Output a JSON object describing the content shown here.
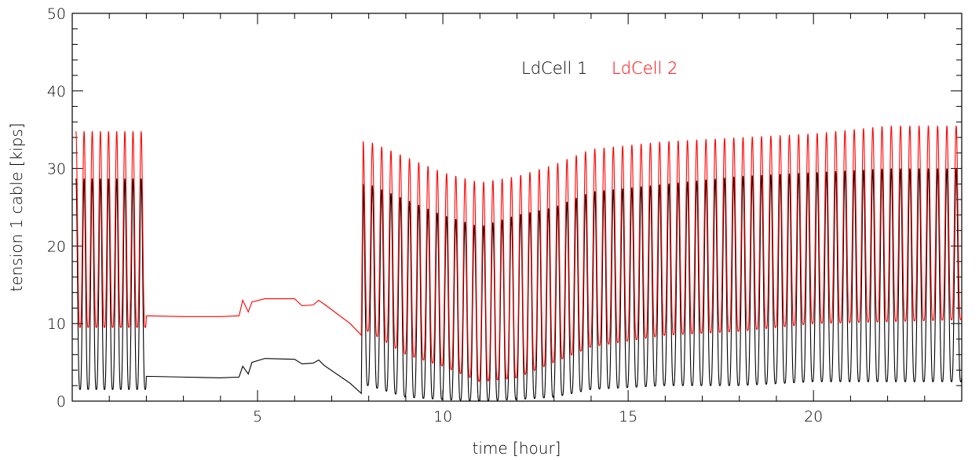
{
  "chart_data": {
    "type": "line",
    "title": "",
    "xlabel": "time [hour]",
    "ylabel": "tension 1 cable [kips]",
    "xlim": [
      0,
      24
    ],
    "ylim": [
      0,
      50
    ],
    "x_ticks": [
      5,
      10,
      15,
      20
    ],
    "y_ticks": [
      0,
      10,
      20,
      30,
      40,
      50
    ],
    "legend": {
      "placement": "top-center",
      "entries": [
        "LdCell 1",
        "LdCell 2"
      ]
    },
    "grid": false,
    "colors": {
      "LdCell 1": "#000000",
      "LdCell 2": "#ff0000"
    },
    "series": [
      {
        "name": "LdCell 1",
        "segments": [
          {
            "kind": "oscillation",
            "x_start": 0.1,
            "x_end": 2.0,
            "period": 0.22,
            "min": 1.5,
            "max": 28.7
          },
          {
            "kind": "plateau",
            "points": [
              [
                2.0,
                3.2
              ],
              [
                3.0,
                3.1
              ],
              [
                4.0,
                3.0
              ],
              [
                4.5,
                3.1
              ],
              [
                4.6,
                4.5
              ],
              [
                4.75,
                3.5
              ],
              [
                4.85,
                5.0
              ],
              [
                5.2,
                5.5
              ],
              [
                6.0,
                5.4
              ],
              [
                6.2,
                4.8
              ],
              [
                6.5,
                4.9
              ],
              [
                6.65,
                5.3
              ],
              [
                6.8,
                4.6
              ],
              [
                7.5,
                2.3
              ],
              [
                7.8,
                1.0
              ]
            ]
          },
          {
            "kind": "oscillation",
            "x_start": 7.85,
            "x_end": 24.0,
            "period": 0.25,
            "amplitude_profile": [
              [
                8.0,
                28.0
              ],
              [
                9.0,
                26.0
              ],
              [
                10.0,
                24.0
              ],
              [
                11.0,
                22.5
              ],
              [
                12.0,
                24.0
              ],
              [
                13.0,
                25.0
              ],
              [
                14.0,
                27.0
              ],
              [
                16.0,
                28.0
              ],
              [
                18.0,
                29.0
              ],
              [
                20.0,
                29.5
              ],
              [
                22.0,
                30.0
              ],
              [
                24.0,
                30.0
              ]
            ],
            "min_profile": [
              [
                8.0,
                2.0
              ],
              [
                9.0,
                0.5
              ],
              [
                10.0,
                0.2
              ],
              [
                11.0,
                0.0
              ],
              [
                12.0,
                0.2
              ],
              [
                13.0,
                0.5
              ],
              [
                14.0,
                1.5
              ],
              [
                16.0,
                2.0
              ],
              [
                18.0,
                2.0
              ],
              [
                20.0,
                2.5
              ],
              [
                24.0,
                2.5
              ]
            ]
          }
        ]
      },
      {
        "name": "LdCell 2",
        "segments": [
          {
            "kind": "oscillation",
            "x_start": 0.1,
            "x_end": 2.0,
            "period": 0.22,
            "min": 9.5,
            "max": 34.8
          },
          {
            "kind": "plateau",
            "points": [
              [
                2.0,
                11.0
              ],
              [
                3.0,
                10.9
              ],
              [
                4.0,
                10.9
              ],
              [
                4.5,
                11.0
              ],
              [
                4.6,
                13.0
              ],
              [
                4.75,
                11.5
              ],
              [
                4.85,
                12.8
              ],
              [
                5.2,
                13.2
              ],
              [
                6.0,
                13.2
              ],
              [
                6.2,
                12.3
              ],
              [
                6.5,
                12.4
              ],
              [
                6.65,
                13.0
              ],
              [
                6.8,
                12.5
              ],
              [
                7.5,
                10.0
              ],
              [
                7.8,
                8.5
              ]
            ]
          },
          {
            "kind": "oscillation",
            "x_start": 7.85,
            "x_end": 24.0,
            "period": 0.25,
            "amplitude_profile": [
              [
                8.0,
                33.5
              ],
              [
                9.0,
                31.5
              ],
              [
                10.0,
                29.5
              ],
              [
                11.0,
                28.2
              ],
              [
                12.0,
                29.0
              ],
              [
                13.0,
                30.5
              ],
              [
                14.0,
                32.5
              ],
              [
                16.0,
                33.5
              ],
              [
                18.0,
                34.0
              ],
              [
                20.0,
                34.5
              ],
              [
                22.0,
                35.5
              ],
              [
                24.0,
                35.5
              ]
            ],
            "min_profile": [
              [
                8.0,
                9.0
              ],
              [
                9.0,
                6.0
              ],
              [
                10.0,
                4.5
              ],
              [
                11.0,
                2.5
              ],
              [
                12.0,
                3.0
              ],
              [
                13.0,
                5.0
              ],
              [
                14.0,
                7.0
              ],
              [
                16.0,
                8.5
              ],
              [
                18.0,
                9.0
              ],
              [
                20.0,
                10.0
              ],
              [
                24.0,
                10.5
              ]
            ]
          }
        ]
      }
    ]
  }
}
